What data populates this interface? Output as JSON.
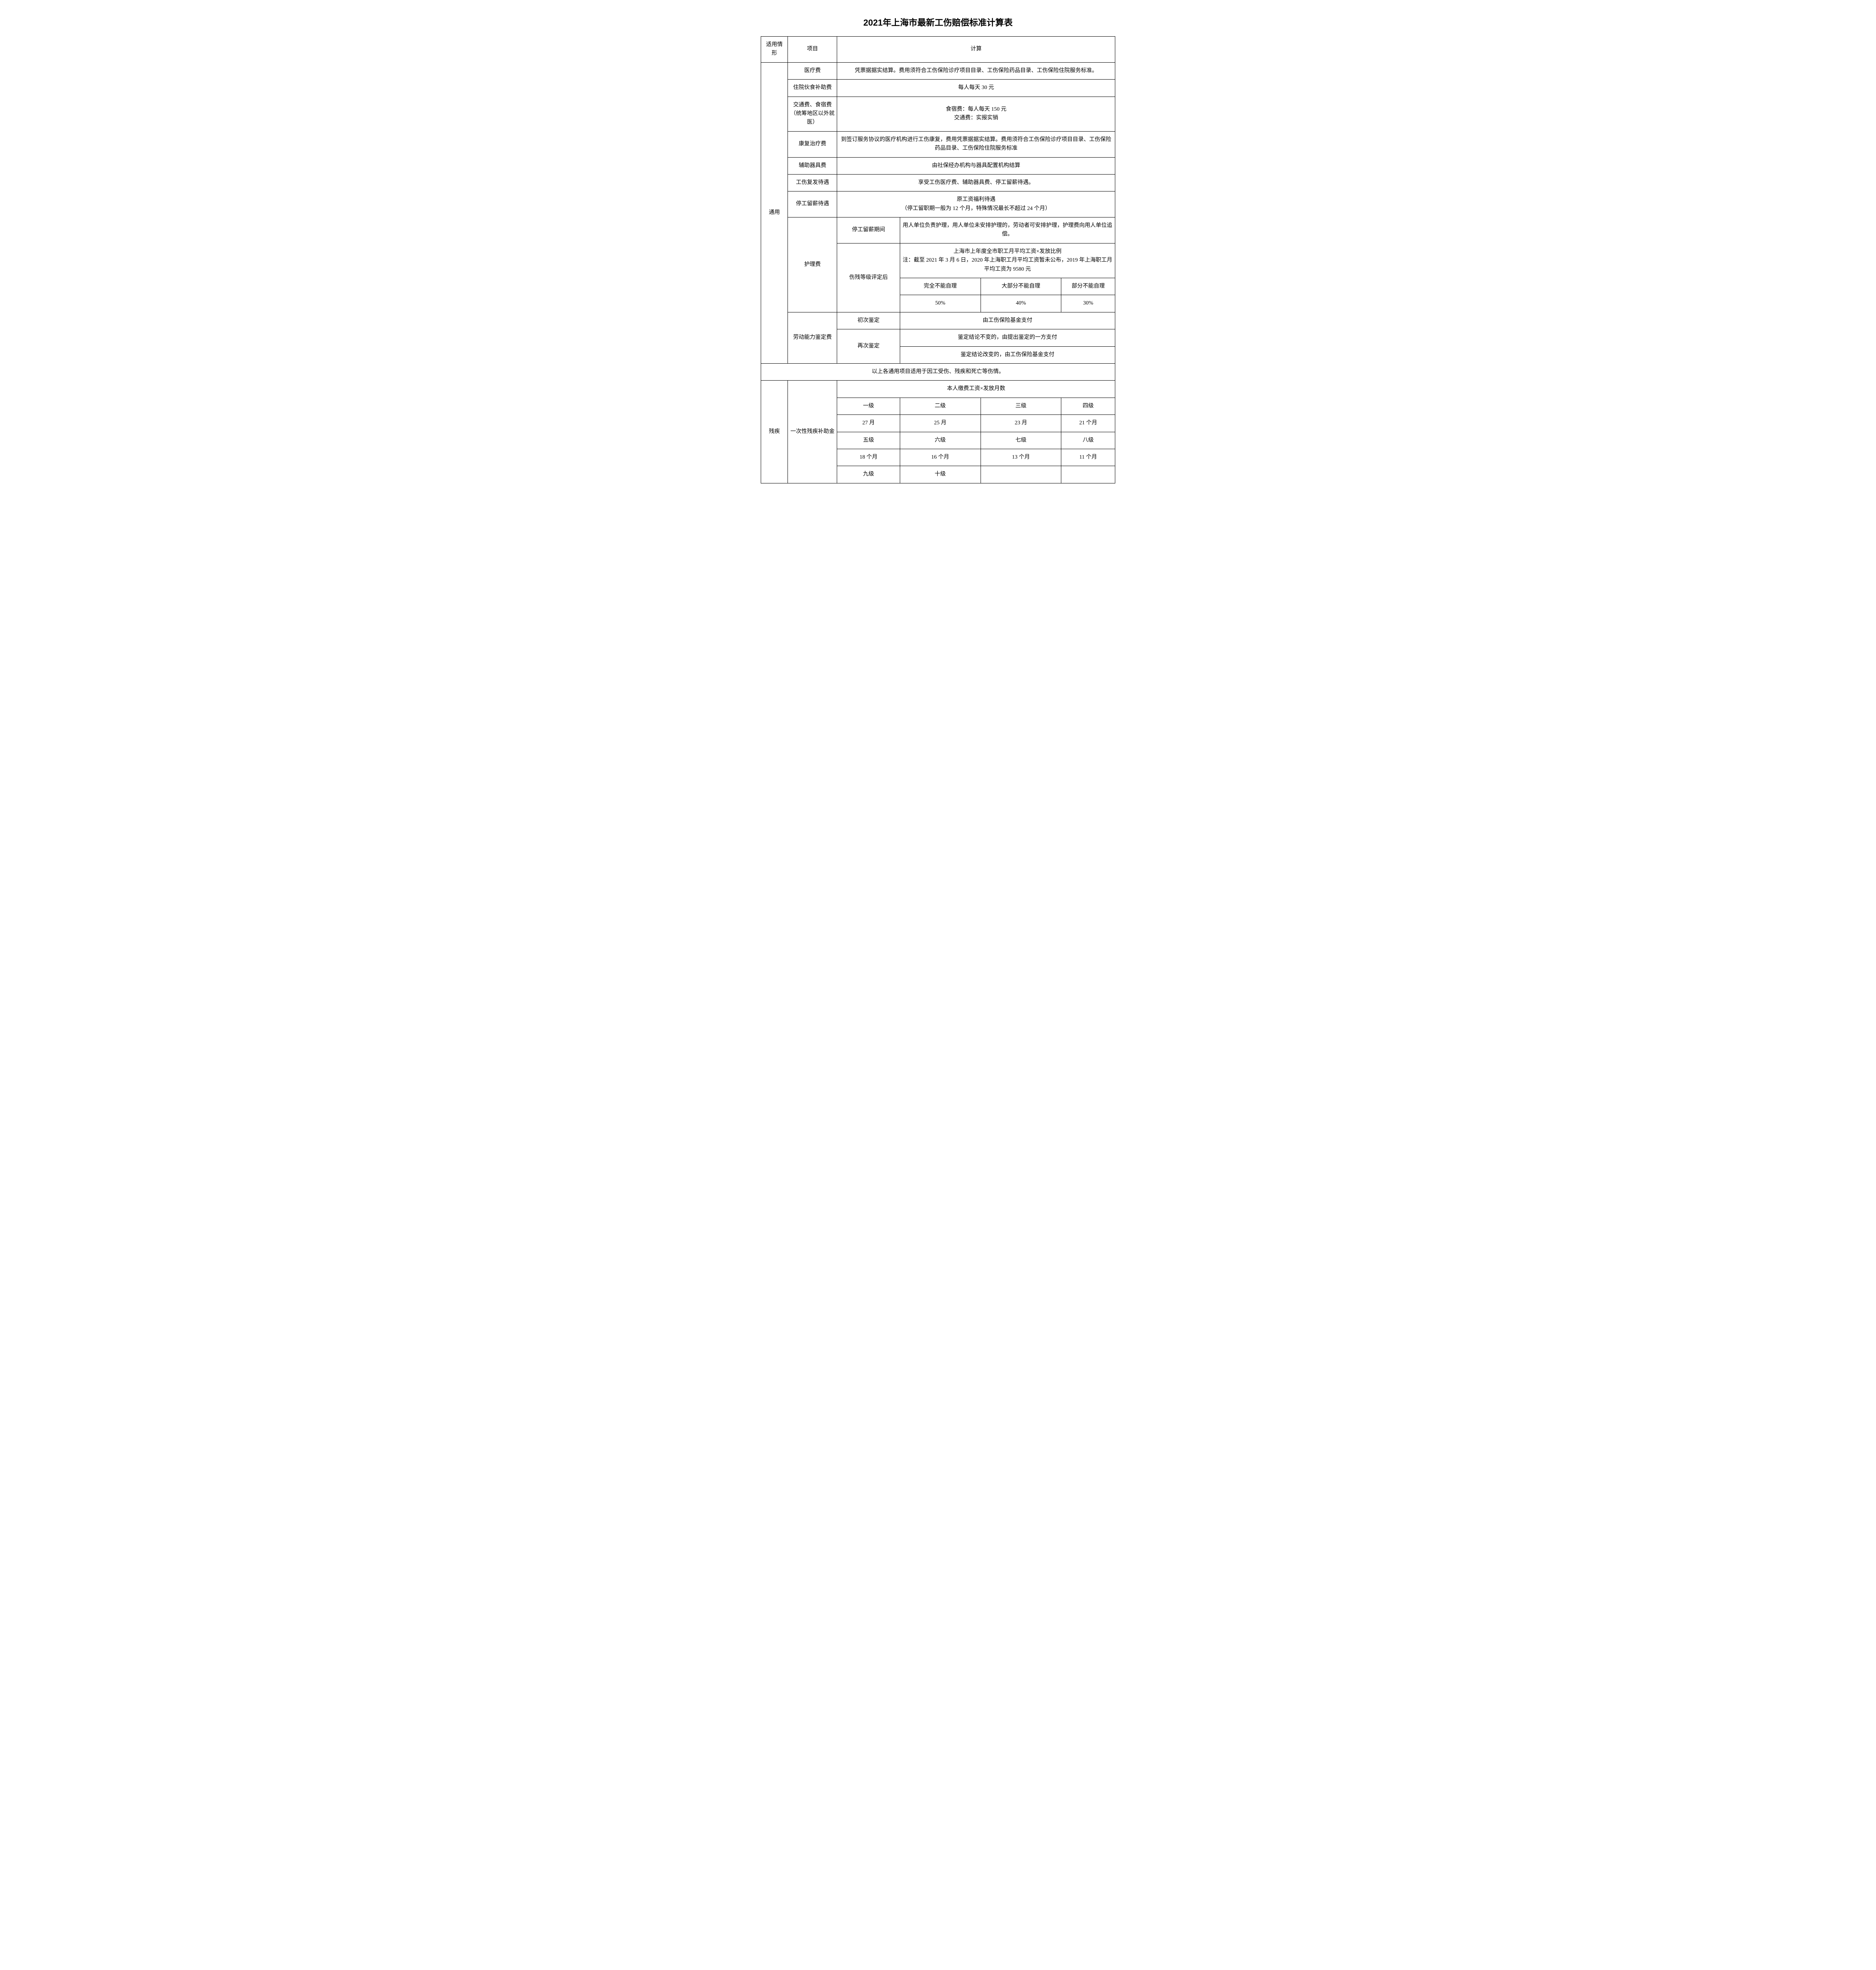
{
  "title": "2021年上海市最新工伤赔偿标准计算表",
  "header": {
    "cat": "适用情形",
    "item": "项目",
    "calc": "计算"
  },
  "cat": {
    "general": "通用",
    "disability": "残疾"
  },
  "general": {
    "medical": {
      "item": "医疗费",
      "calc": "凭票据据实结算。费用须符合工伤保险诊疗项目目录、工伤保险药品目录、工伤保险住院服务标准。"
    },
    "meal": {
      "item": "住院伙食补助费",
      "calc": "每人每天 30 元"
    },
    "travel": {
      "item": "交通费、食宿费（统筹地区以外就医）",
      "calc": "食宿费：每人每天 150 元\n交通费：实报实销"
    },
    "rehab": {
      "item": "康复治疗费",
      "calc": "到签订服务协议的医疗机构进行工伤康复，费用凭票据据实结算。费用须符合工伤保险诊疗项目目录、工伤保险药品目录、工伤保险住院服务标准"
    },
    "device": {
      "item": "辅助器具费",
      "calc": "由社保经办机构与器具配置机构结算"
    },
    "recur": {
      "item": "工伤复发待遇",
      "calc": "享受工伤医疗费、辅助器具费、停工留薪待遇。"
    },
    "suspend": {
      "item": "停工留薪待遇",
      "calc": "原工资福利待遇\n（停工留职期一般为 12 个月，特殊情况最长不超过 24 个月）"
    },
    "nursing": {
      "item": "护理费",
      "period_label": "停工留薪期间",
      "period_calc": "用人单位负责护理，用人单位未安排护理的，劳动者可安排护理，护理费向用人单位追偿。",
      "after_label": "伤残等级评定后",
      "after_note": "上海市上年度全市职工月平均工资×发放比例\n注：截至 2021 年 3 月 6 日，2020 年上海职工月平均工资暂未公布，2019 年上海职工月平均工资为 9580 元",
      "h1": "完全不能自理",
      "h2": "大部分不能自理",
      "h3": "部分不能自理",
      "v1": "50%",
      "v2": "40%",
      "v3": "30%"
    },
    "assess": {
      "item": "劳动能力鉴定费",
      "first_label": "初次鉴定",
      "first_calc": "由工伤保险基金支付",
      "again_label": "再次鉴定",
      "again_calc1": "鉴定结论不变的，由提出鉴定的一方支付",
      "again_calc2": "鉴定结论改变的，由工伤保险基金支付"
    },
    "footnote": "以上各通用项目适用于因工受伤、残疾和死亡等伤情。"
  },
  "disability": {
    "lump": {
      "item": "一次性残疾补助金",
      "formula": "本人缴费工资×发放月数",
      "r1": {
        "l1": "一级",
        "l2": "二级",
        "l3": "三级",
        "l4": "四级"
      },
      "r2": {
        "v1": "27 月",
        "v2": "25 月",
        "v3": "23 月",
        "v4": "21 个月"
      },
      "r3": {
        "l1": "五级",
        "l2": "六级",
        "l3": "七级",
        "l4": "八级"
      },
      "r4": {
        "v1": "18 个月",
        "v2": "16 个月",
        "v3": "13 个月",
        "v4": "11 个月"
      },
      "r5": {
        "l1": "九级",
        "l2": "十级",
        "l3": "",
        "l4": ""
      }
    }
  }
}
